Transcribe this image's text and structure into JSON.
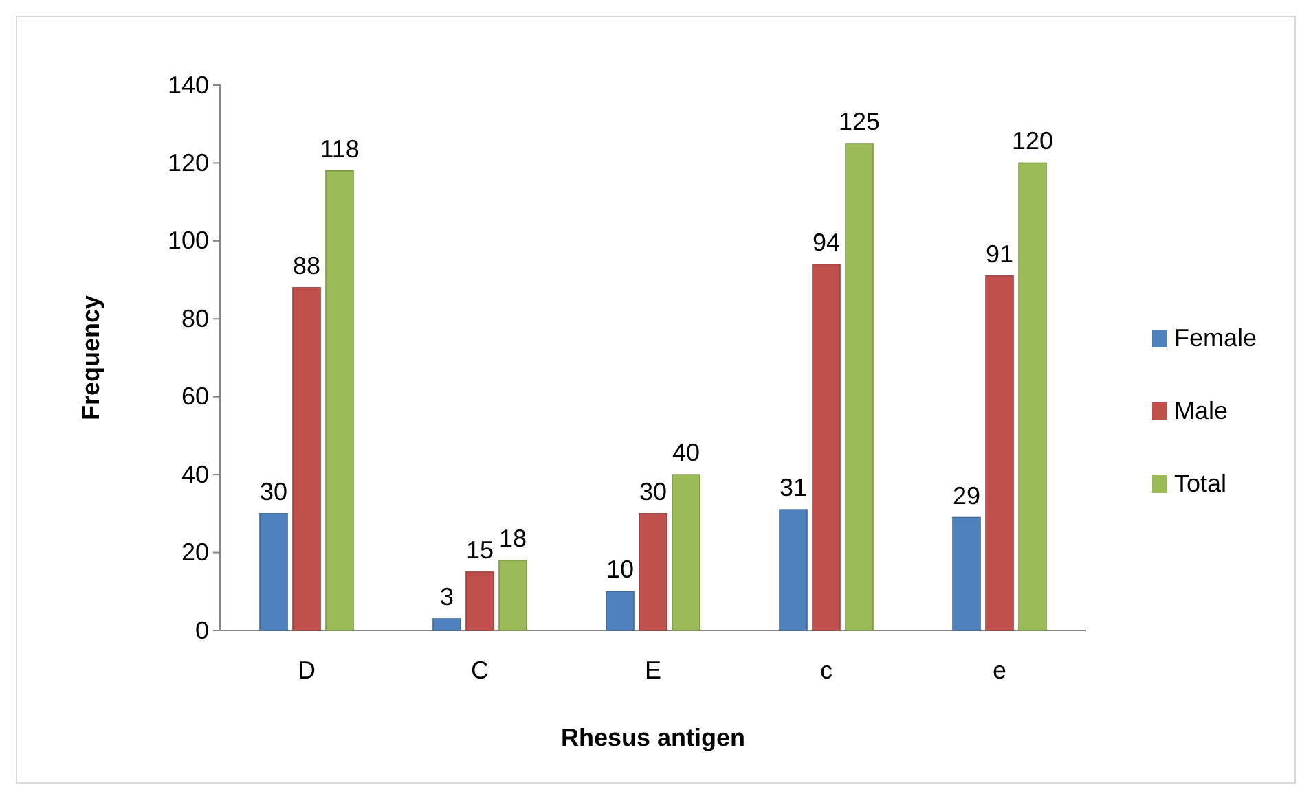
{
  "chart_data": {
    "type": "bar",
    "xlabel": "Rhesus antigen",
    "ylabel": "Frequency",
    "categories": [
      "D",
      "C",
      "E",
      "c",
      "e"
    ],
    "series": [
      {
        "name": "Female",
        "color": "#4f81bd",
        "values": [
          30,
          3,
          10,
          31,
          29
        ]
      },
      {
        "name": "Male",
        "color": "#c0504d",
        "values": [
          88,
          15,
          30,
          94,
          91
        ]
      },
      {
        "name": "Total",
        "color": "#9bbb59",
        "values": [
          118,
          18,
          40,
          125,
          120
        ]
      }
    ],
    "ylim": [
      0,
      140
    ],
    "yticks": [
      0,
      20,
      40,
      60,
      80,
      100,
      120,
      140
    ],
    "grid": false,
    "legend": "right",
    "data_labels": true
  }
}
